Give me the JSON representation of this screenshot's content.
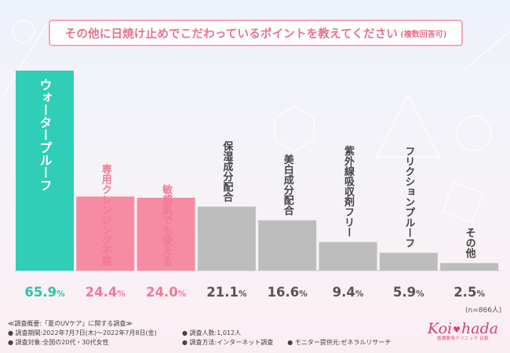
{
  "title": {
    "main": "その他に日焼け止めでこだわっているポイントを教えてください",
    "sub": "(複数回答可)"
  },
  "chart_data": {
    "type": "bar",
    "categories": [
      "ウォータープルーフ",
      "専用クレンジング不要",
      "敏感肌でも使える",
      "保湿成分配合",
      "美白成分配合",
      "紫外線吸収剤フリー",
      "フリクションプルーフ",
      "その他"
    ],
    "values": [
      65.9,
      24.4,
      24.0,
      21.1,
      16.6,
      9.4,
      5.9,
      2.5
    ],
    "value_labels": [
      {
        "num": "65.9",
        "unit": "%"
      },
      {
        "num": "24.4",
        "unit": "%"
      },
      {
        "num": "24.0",
        "unit": "%"
      },
      {
        "num": "21.1",
        "unit": "%"
      },
      {
        "num": "16.6",
        "unit": "%"
      },
      {
        "num": "9.4",
        "unit": "%"
      },
      {
        "num": "5.9",
        "unit": "%"
      },
      {
        "num": "2.5",
        "unit": "%"
      }
    ],
    "ylim": [
      0,
      65.9
    ],
    "bar_colors": [
      "#30cdb7",
      "#f58ca3",
      "#f58ca3",
      "#bdbdbd",
      "#bdbdbd",
      "#bdbdbd",
      "#bdbdbd",
      "#bdbdbd"
    ],
    "value_colors": [
      "#30c2ae",
      "#f07a96",
      "#f07a96",
      "#555555",
      "#555555",
      "#555555",
      "#555555",
      "#555555"
    ],
    "label_colors": [
      "#ffffff",
      "#f07a96",
      "#f07a96",
      "#444444",
      "#444444",
      "#444444",
      "#444444",
      "#444444"
    ],
    "grid": false,
    "legend": "none"
  },
  "note": "(n=866人)",
  "footer": {
    "c1": [
      "≪調査概要:「夏のUVケア」に関する調査≫",
      "● 調査期間:2022年7月7日(木)～2022年7月8日(金)",
      "● 調査対象:全国の20代・30代女性"
    ],
    "c2": [
      "● 調査人数:1,012人",
      "● 調査方法:インターネット調査"
    ],
    "c3": "● モニター提供元:ゼネラルリサーチ"
  },
  "logo": {
    "left": "Koi",
    "right": "hada",
    "sub": "医療脱毛クリニック 比較"
  }
}
